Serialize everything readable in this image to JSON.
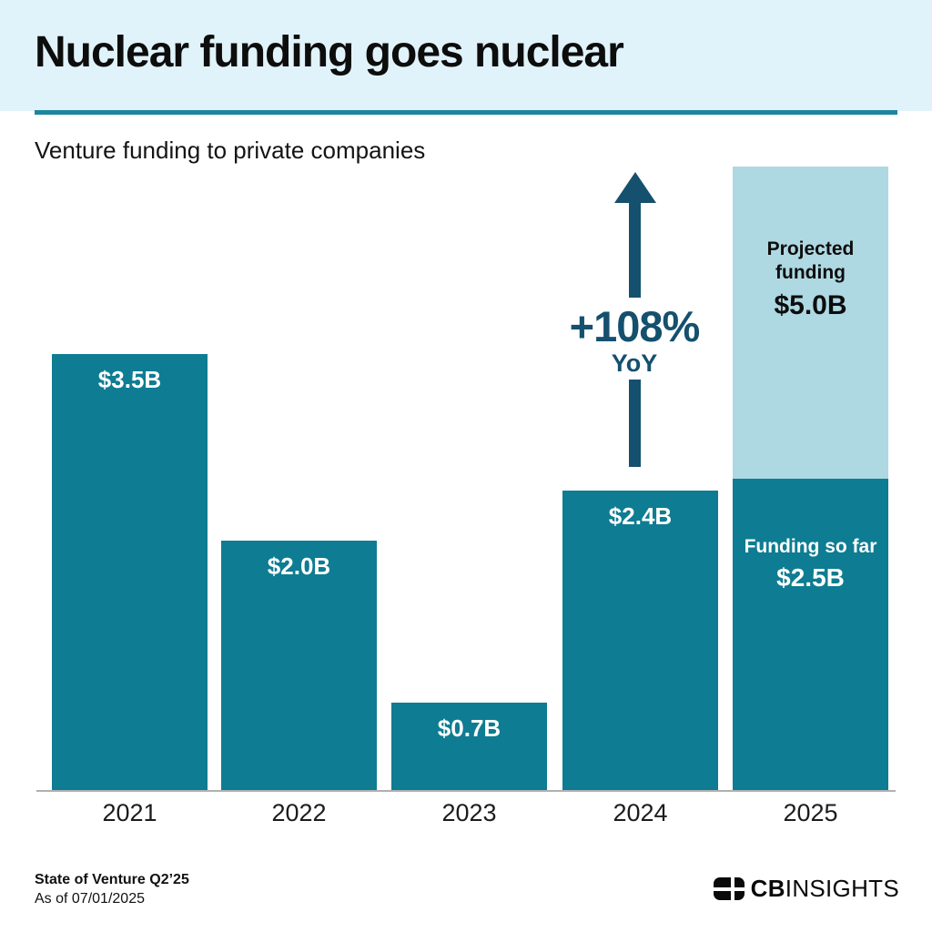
{
  "header": {
    "title": "Nuclear funding goes nuclear",
    "subtitle": "Venture funding to private companies"
  },
  "chart_data": {
    "type": "bar",
    "title": "Nuclear funding goes nuclear",
    "subtitle": "Venture funding to private companies",
    "unit": "USD billions",
    "categories": [
      "2021",
      "2022",
      "2023",
      "2024",
      "2025"
    ],
    "series": [
      {
        "name": "Funding so far",
        "values": [
          3.5,
          2.0,
          0.7,
          2.4,
          2.5
        ]
      },
      {
        "name": "Projected additional funding",
        "values": [
          0,
          0,
          0,
          0,
          2.5
        ]
      }
    ],
    "totals": [
      3.5,
      2.0,
      0.7,
      2.4,
      5.0
    ],
    "bar_labels": [
      "$3.5B",
      "$2.0B",
      "$0.7B",
      "$2.4B"
    ],
    "labels_2025": {
      "projected_title": "Projected funding",
      "projected_value": "$5.0B",
      "actual_title": "Funding so far",
      "actual_value": "$2.5B"
    },
    "annotation": {
      "value": "+108%",
      "label": "YoY"
    },
    "ylim": [
      0,
      5.0
    ],
    "grid": false,
    "legend": false,
    "colors": {
      "bar": "#0e7c92",
      "projected": "#aed8e2",
      "annotation": "#15506e",
      "header_band": "#e1f3fa",
      "divider": "#1c86a0",
      "axis": "#b0b0b0"
    }
  },
  "footer": {
    "source_title": "State of Venture Q2’25",
    "as_of": "As of 07/01/2025",
    "logo_cb": "CB",
    "logo_insights": "INSIGHTS"
  }
}
